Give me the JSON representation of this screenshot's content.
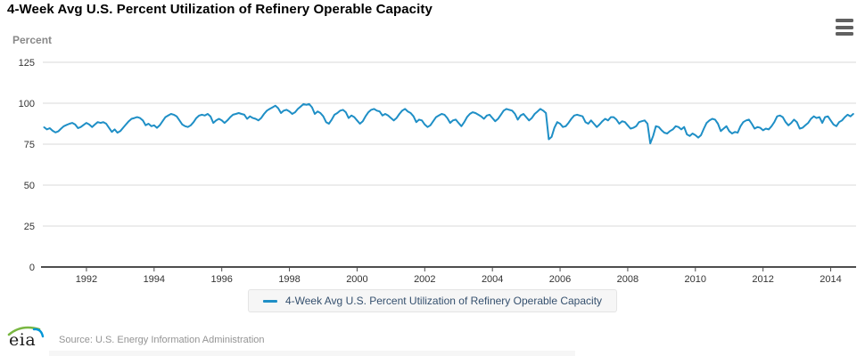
{
  "header": {
    "title": "4-Week Avg U.S. Percent Utilization of Refinery Operable Capacity"
  },
  "toolbar": {
    "menu_icon": "hamburger-menu-icon"
  },
  "footer": {
    "logo_text": "eia",
    "source": "Source: U.S. Energy Information Administration"
  },
  "colors": {
    "series_line": "#1f8fc6",
    "grid": "#d8d8d8",
    "axis": "#4d4d4d",
    "legend_text": "#35506e",
    "logo_green": "#79b742",
    "logo_blue": "#0096d7"
  },
  "chart_data": {
    "type": "line",
    "title": "4-Week Avg U.S. Percent Utilization of Refinery Operable Capacity",
    "xlabel": "",
    "ylabel": "Percent",
    "ylim": [
      0,
      125
    ],
    "yticks": [
      0,
      25,
      50,
      75,
      100,
      125
    ],
    "xticks": [
      1992,
      1994,
      1996,
      1998,
      2000,
      2002,
      2004,
      2006,
      2008,
      2010,
      2012,
      2014
    ],
    "x_range": [
      1990.71,
      2014.75
    ],
    "grid": "horizontal",
    "legend_position": "bottom-center",
    "series": [
      {
        "name": "4-Week Avg U.S. Percent Utilization of Refinery Operable Capacity",
        "color": "#1f8fc6",
        "x_start": 1990.75,
        "x_step_years": 0.0833333,
        "values": [
          85.3,
          84.0,
          84.8,
          83.2,
          82.2,
          82.8,
          84.5,
          86.0,
          86.8,
          87.5,
          88.0,
          87.0,
          84.8,
          85.5,
          86.8,
          88.0,
          87.0,
          85.5,
          87.0,
          88.5,
          88.0,
          88.5,
          87.5,
          85.0,
          82.5,
          84.0,
          82.0,
          83.0,
          85.0,
          87.0,
          89.0,
          90.5,
          91.0,
          91.5,
          91.0,
          89.5,
          86.5,
          87.5,
          86.0,
          86.5,
          85.0,
          86.5,
          89.0,
          91.5,
          92.5,
          93.5,
          93.0,
          92.0,
          89.5,
          87.0,
          86.0,
          85.5,
          86.5,
          88.5,
          91.0,
          92.5,
          93.0,
          92.5,
          93.5,
          92.0,
          88.0,
          89.5,
          90.5,
          89.5,
          88.0,
          89.5,
          91.5,
          93.0,
          93.5,
          94.0,
          93.5,
          93.0,
          90.5,
          92.0,
          91.0,
          90.5,
          89.5,
          91.0,
          93.5,
          95.5,
          96.5,
          97.5,
          98.5,
          97.0,
          94.0,
          95.5,
          96.0,
          95.0,
          93.5,
          94.5,
          96.5,
          98.0,
          99.5,
          99.0,
          99.5,
          97.5,
          93.5,
          95.0,
          94.0,
          92.0,
          88.5,
          87.5,
          90.0,
          93.0,
          94.0,
          95.5,
          96.0,
          94.5,
          91.0,
          92.5,
          91.5,
          89.5,
          87.5,
          89.0,
          92.0,
          94.5,
          96.0,
          96.5,
          95.5,
          95.0,
          92.5,
          93.5,
          92.5,
          91.0,
          89.5,
          91.0,
          93.5,
          95.5,
          96.5,
          95.0,
          94.0,
          92.0,
          88.5,
          90.0,
          89.5,
          87.0,
          85.5,
          86.5,
          89.0,
          91.5,
          92.5,
          93.5,
          93.0,
          91.0,
          88.0,
          89.5,
          90.0,
          88.0,
          86.0,
          88.5,
          91.5,
          93.5,
          94.5,
          94.0,
          93.0,
          92.0,
          90.5,
          92.5,
          93.0,
          91.0,
          89.0,
          90.5,
          93.0,
          95.5,
          96.5,
          96.0,
          95.5,
          93.5,
          90.0,
          92.5,
          93.5,
          91.5,
          89.5,
          91.0,
          93.5,
          95.0,
          96.5,
          95.5,
          94.0,
          78.0,
          79.5,
          85.0,
          88.5,
          87.5,
          85.5,
          86.0,
          88.0,
          90.5,
          92.5,
          93.0,
          92.5,
          92.0,
          88.5,
          87.5,
          89.5,
          87.5,
          85.5,
          87.0,
          89.0,
          90.5,
          89.5,
          91.5,
          91.5,
          90.0,
          87.5,
          89.0,
          88.5,
          86.5,
          84.5,
          85.0,
          86.0,
          88.5,
          89.0,
          89.5,
          87.5,
          75.5,
          80.0,
          86.0,
          85.5,
          83.5,
          82.0,
          81.5,
          83.0,
          84.0,
          86.0,
          85.5,
          84.0,
          85.5,
          81.0,
          80.0,
          81.5,
          80.5,
          79.0,
          80.5,
          84.5,
          88.0,
          89.5,
          90.5,
          90.0,
          87.5,
          83.0,
          84.5,
          86.0,
          83.0,
          81.5,
          82.5,
          82.0,
          86.0,
          88.5,
          89.5,
          90.0,
          87.5,
          84.5,
          85.5,
          85.0,
          83.5,
          84.5,
          84.0,
          86.0,
          88.5,
          92.0,
          92.5,
          91.5,
          88.5,
          86.5,
          88.0,
          90.0,
          88.5,
          84.5,
          85.0,
          86.5,
          88.0,
          90.5,
          92.0,
          91.0,
          91.5,
          88.0,
          91.5,
          92.0,
          89.5,
          87.0,
          86.0,
          88.5,
          89.5,
          91.5,
          93.0,
          92.0,
          93.5
        ]
      }
    ]
  }
}
